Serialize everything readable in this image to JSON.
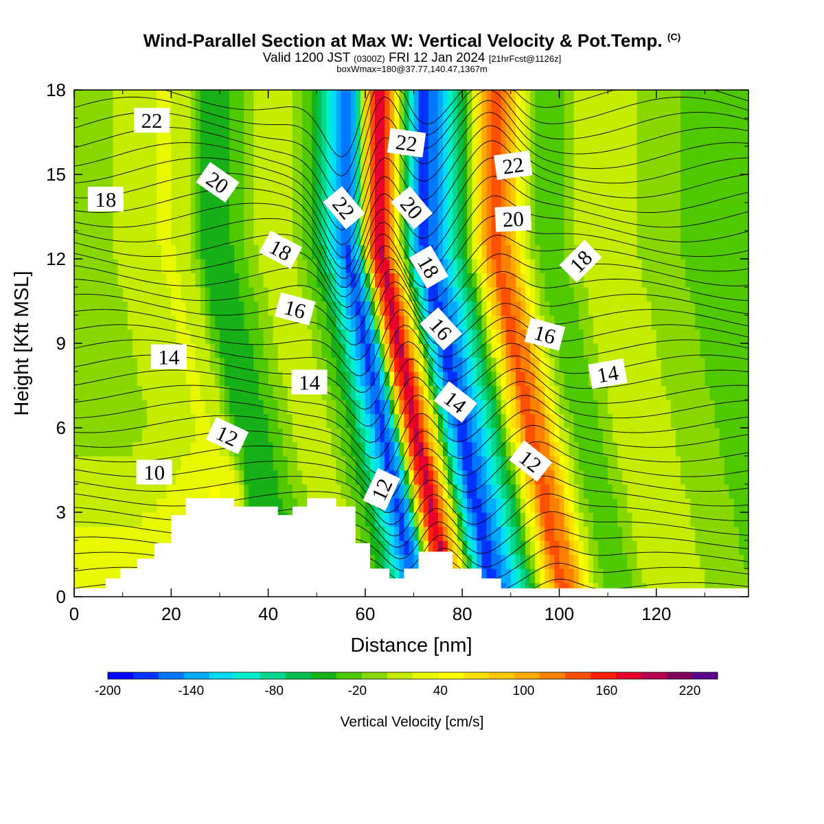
{
  "title": {
    "main": "Wind-Parallel Section at Max W: Vertical Velocity & Pot.Temp.",
    "copyright": "(C)",
    "valid_prefix": "Valid 1200 JST",
    "valid_utc": "(0300Z)",
    "valid_date": "FRI 12 Jan 2024",
    "valid_fcst": "[21hrFcst@1126z]",
    "box": "boxWmax=180@37.77,140.47,1367m"
  },
  "chart_data": {
    "type": "heatmap",
    "xlabel": "Distance [nm]",
    "ylabel": "Height [Kft MSL]",
    "xlim": [
      0,
      139
    ],
    "ylim": [
      0,
      18
    ],
    "x_ticks": [
      0,
      20,
      40,
      60,
      80,
      100,
      120
    ],
    "y_ticks": [
      0,
      3,
      6,
      9,
      12,
      15,
      18
    ],
    "shaded_field": "Vertical Velocity [cm/s]",
    "contour_field": "Potential Temperature [C]",
    "w_profile": {
      "x": [
        0,
        8,
        16,
        19,
        23,
        27,
        31,
        35,
        40,
        45,
        50,
        53,
        56,
        58,
        61,
        63,
        66,
        69,
        72,
        76,
        80,
        83,
        86,
        89,
        93,
        97,
        101,
        106,
        112,
        120,
        130,
        139
      ],
      "w": [
        10,
        20,
        35,
        45,
        30,
        -40,
        -30,
        0,
        40,
        20,
        -30,
        -100,
        -170,
        -120,
        160,
        230,
        100,
        -80,
        -180,
        -120,
        -40,
        70,
        170,
        150,
        30,
        -20,
        0,
        40,
        30,
        10,
        -10,
        -20
      ]
    },
    "terrain": {
      "x": [
        0,
        6.5,
        6.5,
        9.5,
        9.5,
        13,
        13,
        16.5,
        16.5,
        20,
        20,
        23,
        23,
        33,
        33,
        42,
        42,
        45,
        45,
        48,
        48,
        54,
        54,
        58,
        58,
        61,
        61,
        65,
        65,
        68,
        68,
        71,
        71,
        78,
        78,
        84,
        84,
        88,
        88,
        139
      ],
      "h": [
        0.3,
        0.3,
        0.65,
        0.65,
        1.0,
        1.0,
        1.35,
        1.35,
        1.9,
        1.9,
        2.9,
        2.9,
        3.5,
        3.5,
        3.2,
        3.2,
        2.9,
        2.9,
        3.2,
        3.2,
        3.5,
        3.5,
        3.2,
        3.2,
        1.9,
        1.9,
        1.0,
        1.0,
        0.65,
        0.65,
        1.0,
        1.0,
        1.6,
        1.6,
        1.0,
        1.0,
        0.65,
        0.65,
        0.3,
        0.3
      ]
    },
    "contour_labels": [
      {
        "text": "22",
        "x": 16,
        "y": 16.9,
        "angle": 0
      },
      {
        "text": "20",
        "x": 29.5,
        "y": 14.7,
        "angle": 35
      },
      {
        "text": "18",
        "x": 6.5,
        "y": 14.1,
        "angle": 0
      },
      {
        "text": "18",
        "x": 42.5,
        "y": 12.3,
        "angle": 28
      },
      {
        "text": "22",
        "x": 55.5,
        "y": 13.8,
        "angle": 50
      },
      {
        "text": "22",
        "x": 68.5,
        "y": 16.1,
        "angle": 8
      },
      {
        "text": "20",
        "x": 69.5,
        "y": 13.8,
        "angle": 50
      },
      {
        "text": "22",
        "x": 90.5,
        "y": 15.3,
        "angle": -8
      },
      {
        "text": "20",
        "x": 90.5,
        "y": 13.4,
        "angle": -3
      },
      {
        "text": "18",
        "x": 73,
        "y": 11.7,
        "angle": 60
      },
      {
        "text": "16",
        "x": 45.5,
        "y": 10.2,
        "angle": 15
      },
      {
        "text": "18",
        "x": 104.5,
        "y": 11.9,
        "angle": -45
      },
      {
        "text": "16",
        "x": 75.5,
        "y": 9.5,
        "angle": 48
      },
      {
        "text": "16",
        "x": 97,
        "y": 9.3,
        "angle": 15
      },
      {
        "text": "14",
        "x": 19.5,
        "y": 8.5,
        "angle": 0
      },
      {
        "text": "14",
        "x": 48.5,
        "y": 7.6,
        "angle": 0
      },
      {
        "text": "14",
        "x": 78.5,
        "y": 6.9,
        "angle": 38
      },
      {
        "text": "14",
        "x": 110,
        "y": 7.9,
        "angle": -10
      },
      {
        "text": "12",
        "x": 31.5,
        "y": 5.7,
        "angle": 25
      },
      {
        "text": "12",
        "x": 63.5,
        "y": 3.8,
        "angle": -65
      },
      {
        "text": "12",
        "x": 94,
        "y": 4.8,
        "angle": 38
      },
      {
        "text": "10",
        "x": 16.5,
        "y": 4.4,
        "angle": 0
      }
    ],
    "colorbar": {
      "label": "Vertical Velocity [cm/s]",
      "tick_labels": [
        "-200",
        "-140",
        "-80",
        "-20",
        "40",
        "100",
        "160",
        "220"
      ],
      "levels_min": -200,
      "levels_max": 240,
      "levels_step": 20,
      "colors": [
        "#0000ff",
        "#0033ff",
        "#0077ff",
        "#00aaff",
        "#00dcff",
        "#00eec8",
        "#00d890",
        "#00c050",
        "#18b018",
        "#50c800",
        "#88d800",
        "#c4ec00",
        "#e8f800",
        "#ffff00",
        "#ffe000",
        "#ffc800",
        "#ffaa00",
        "#ff8000",
        "#ff5000",
        "#ff2000",
        "#e8002a",
        "#b8004c",
        "#800060",
        "#5a0088"
      ]
    }
  }
}
